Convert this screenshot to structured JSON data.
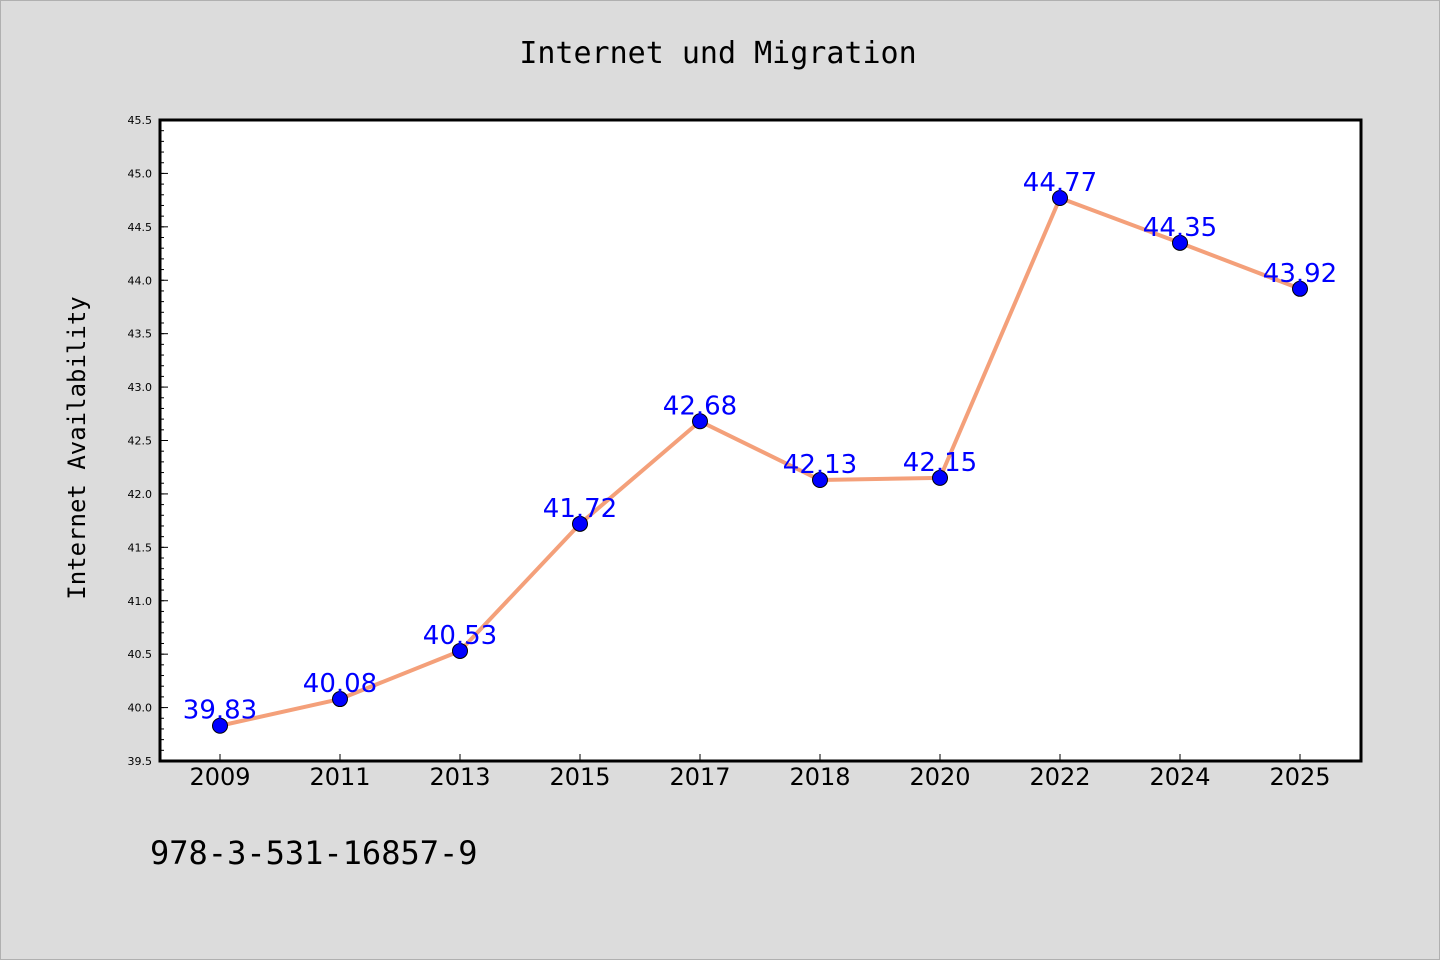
{
  "chart_data": {
    "type": "line",
    "title": "Internet und Migration",
    "ylabel": "Internet Availability",
    "xlabel": "",
    "categories": [
      "2009",
      "2011",
      "2013",
      "2015",
      "2017",
      "2018",
      "2020",
      "2022",
      "2024",
      "2025"
    ],
    "values": [
      39.83,
      40.08,
      40.53,
      41.72,
      42.68,
      42.13,
      42.15,
      44.77,
      44.35,
      43.92
    ],
    "data_labels": [
      "39.83",
      "40.08",
      "40.53",
      "41.72",
      "42.68",
      "42.13",
      "42.15",
      "44.77",
      "44.35",
      "43.92"
    ],
    "ylim": [
      39.5,
      45.5
    ],
    "yticks": [
      "39.5",
      "40.0",
      "40.5",
      "41.0",
      "41.5",
      "42.0",
      "42.5",
      "43.0",
      "43.5",
      "44.0",
      "44.5",
      "45.0",
      "45.5"
    ],
    "grid": false,
    "colors": {
      "line": "#f4a07a",
      "marker": "#0000ff",
      "label": "#0000ff",
      "background": "#dcdcdc",
      "plot": "#ffffff"
    }
  },
  "footer": {
    "isbn": "978-3-531-16857-9"
  }
}
